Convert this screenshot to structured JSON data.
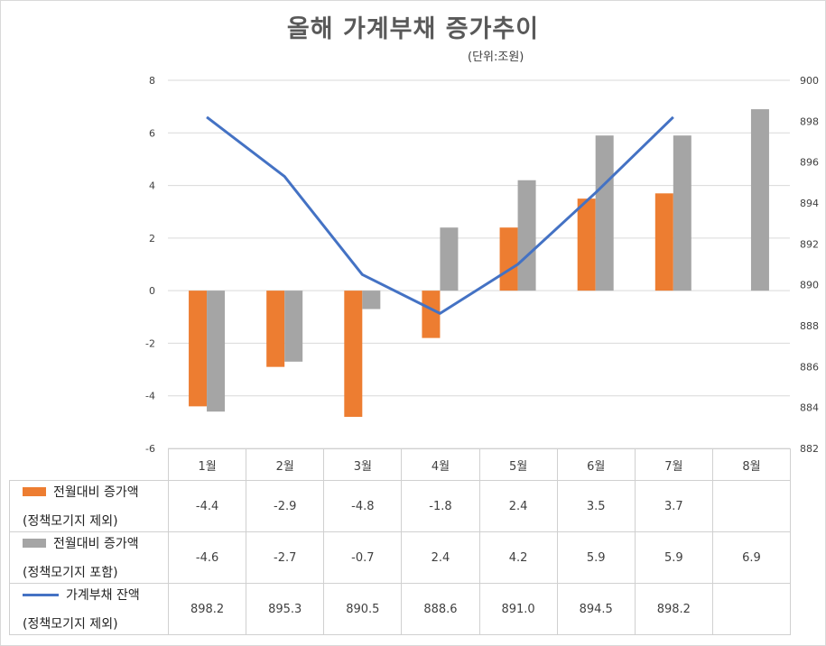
{
  "chart_data": {
    "type": "bar",
    "title": "올해 가계부채 증가추이",
    "subtitle": "(단위:조원)",
    "categories": [
      "1월",
      "2월",
      "3월",
      "4월",
      "5월",
      "6월",
      "7월",
      "8월"
    ],
    "series": [
      {
        "name": "전월대비 증가액",
        "name_line2": "(정책모기지 제외)",
        "type": "bar",
        "axis": "left",
        "color": "#ED7D31",
        "values": [
          -4.4,
          -2.9,
          -4.8,
          -1.8,
          2.4,
          3.5,
          3.7,
          null
        ],
        "labels": [
          "-4.4",
          "-2.9",
          "-4.8",
          "-1.8",
          "2.4",
          "3.5",
          "3.7",
          ""
        ]
      },
      {
        "name": "전월대비 증가액",
        "name_line2": "(정책모기지 포함)",
        "type": "bar",
        "axis": "left",
        "color": "#A5A5A5",
        "values": [
          -4.6,
          -2.7,
          -0.7,
          2.4,
          4.2,
          5.9,
          5.9,
          6.9
        ],
        "labels": [
          "-4.6",
          "-2.7",
          "-0.7",
          "2.4",
          "4.2",
          "5.9",
          "5.9",
          "6.9"
        ]
      },
      {
        "name": "가계부채 잔액",
        "name_line2": "(정책모기지 제외)",
        "type": "line",
        "axis": "right",
        "color": "#4472C4",
        "values": [
          898.2,
          895.3,
          890.5,
          888.6,
          891.0,
          894.5,
          898.2,
          null
        ],
        "labels": [
          "898.2",
          "895.3",
          "890.5",
          "888.6",
          "891.0",
          "894.5",
          "898.2",
          ""
        ]
      }
    ],
    "y_left": {
      "min": -6,
      "max": 8,
      "step": 2,
      "ticks": [
        "-6",
        "-4",
        "-2",
        "0",
        "2",
        "4",
        "6",
        "8"
      ]
    },
    "y_right": {
      "min": 882,
      "max": 900,
      "step": 2,
      "ticks": [
        "882",
        "884",
        "886",
        "888",
        "890",
        "892",
        "894",
        "896",
        "898",
        "900"
      ]
    },
    "grid": true,
    "legend": "data-table"
  }
}
